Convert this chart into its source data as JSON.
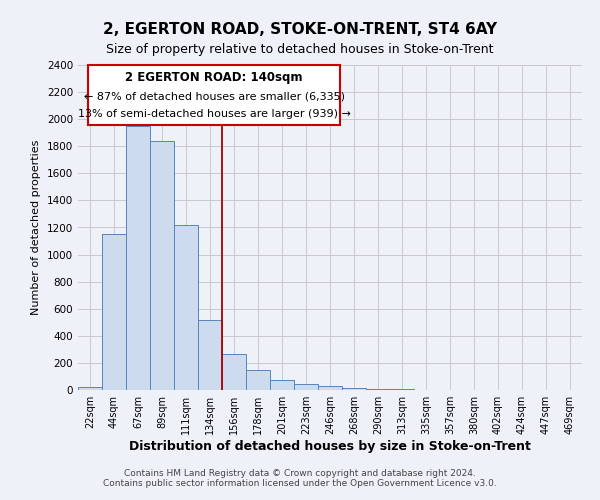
{
  "title": "2, EGERTON ROAD, STOKE-ON-TRENT, ST4 6AY",
  "subtitle": "Size of property relative to detached houses in Stoke-on-Trent",
  "xlabel": "Distribution of detached houses by size in Stoke-on-Trent",
  "ylabel": "Number of detached properties",
  "bar_labels": [
    "22sqm",
    "44sqm",
    "67sqm",
    "89sqm",
    "111sqm",
    "134sqm",
    "156sqm",
    "178sqm",
    "201sqm",
    "223sqm",
    "246sqm",
    "268sqm",
    "290sqm",
    "313sqm",
    "335sqm",
    "357sqm",
    "380sqm",
    "402sqm",
    "424sqm",
    "447sqm",
    "469sqm"
  ],
  "bar_values": [
    25,
    1155,
    1950,
    1840,
    1220,
    520,
    265,
    145,
    75,
    45,
    30,
    15,
    8,
    4,
    3,
    2,
    1,
    1,
    0,
    0,
    0
  ],
  "bar_color": "#ccdcee",
  "bar_edge_color": "#5585c0",
  "property_line_color": "#aa0000",
  "annotation_title": "2 EGERTON ROAD: 140sqm",
  "annotation_line1": "← 87% of detached houses are smaller (6,335)",
  "annotation_line2": "13% of semi-detached houses are larger (939) →",
  "annotation_box_color": "#ffffff",
  "annotation_box_edge": "#cc0000",
  "ylim": [
    0,
    2400
  ],
  "yticks": [
    0,
    200,
    400,
    600,
    800,
    1000,
    1200,
    1400,
    1600,
    1800,
    2000,
    2200,
    2400
  ],
  "grid_color": "#c8c8d0",
  "bg_color": "#eef2f8",
  "footer1": "Contains HM Land Registry data © Crown copyright and database right 2024.",
  "footer2": "Contains public sector information licensed under the Open Government Licence v3.0."
}
